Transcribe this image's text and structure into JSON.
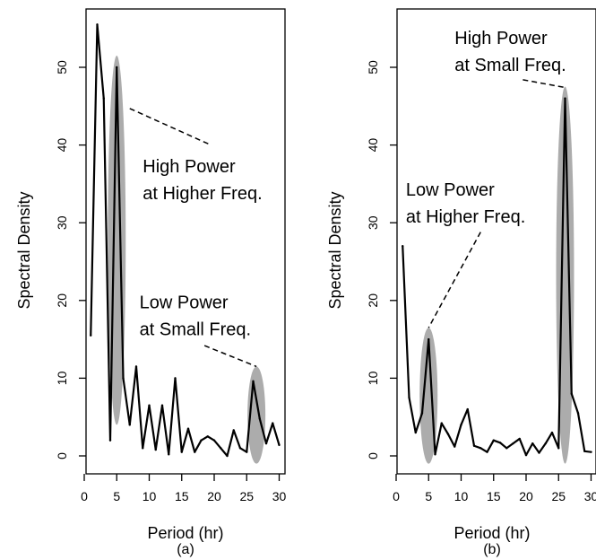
{
  "chart_data": [
    {
      "panel": "(a)",
      "type": "line",
      "xlabel": "Period (hr)",
      "ylabel": "Spectral Density",
      "xlim": [
        0,
        30
      ],
      "ylim": [
        0,
        55
      ],
      "xticks": [
        0,
        5,
        10,
        15,
        20,
        25,
        30
      ],
      "yticks": [
        0,
        10,
        20,
        30,
        40,
        50
      ],
      "x": [
        1,
        2,
        3,
        4,
        5,
        6,
        7,
        8,
        9,
        10,
        11,
        12,
        13,
        14,
        15,
        16,
        17,
        18,
        19,
        20,
        21,
        22,
        23,
        24,
        25,
        26,
        27,
        28,
        29,
        30
      ],
      "y": [
        15.5,
        55.5,
        46,
        2,
        50,
        10,
        4,
        11.5,
        1,
        6.5,
        0.8,
        6.5,
        0.2,
        10,
        0.5,
        3.5,
        0.5,
        2,
        2.5,
        2,
        1,
        0,
        3.3,
        1,
        0.5,
        9.6,
        4.8,
        1.6,
        4.2,
        1.4
      ],
      "highlights": [
        {
          "x": 5,
          "y_min": 4,
          "y_max": 51.5
        },
        {
          "x": 26.5,
          "y_min": -1,
          "y_max": 11.5
        }
      ],
      "annotations": [
        {
          "lines": [
            "High Power",
            "at Higher Freq."
          ],
          "x": 9,
          "y": 36.5,
          "leader_from": [
            7,
            44.7
          ],
          "leader_to": [
            19.5,
            40
          ]
        },
        {
          "lines": [
            "Low Power",
            "at Small Freq."
          ],
          "x": 8.5,
          "y": 19,
          "leader_from": [
            18.5,
            14.2
          ],
          "leader_to": [
            26.5,
            11.5
          ]
        }
      ]
    },
    {
      "panel": "(b)",
      "type": "line",
      "xlabel": "Period (hr)",
      "ylabel": "Spectral Density",
      "xlim": [
        0,
        30
      ],
      "ylim": [
        0,
        55
      ],
      "xticks": [
        0,
        5,
        10,
        15,
        20,
        25,
        30
      ],
      "yticks": [
        0,
        10,
        20,
        30,
        40,
        50
      ],
      "x": [
        1,
        2,
        3,
        4,
        5,
        6,
        7,
        8,
        9,
        10,
        11,
        12,
        13,
        14,
        15,
        16,
        17,
        18,
        19,
        20,
        21,
        22,
        23,
        24,
        25,
        26,
        27,
        28,
        29,
        30
      ],
      "y": [
        27,
        7.5,
        3,
        5.5,
        15,
        0.2,
        4.2,
        2.8,
        1.2,
        4,
        6,
        1.3,
        1,
        0.5,
        2,
        1.7,
        1,
        1.6,
        2.2,
        0.1,
        1.6,
        0.4,
        1.6,
        3,
        1,
        46,
        8,
        5.5,
        0.6,
        0.5
      ],
      "highlights": [
        {
          "x": 5,
          "y_min": -1,
          "y_max": 16.5
        },
        {
          "x": 26,
          "y_min": -1,
          "y_max": 47.5
        }
      ],
      "annotations": [
        {
          "lines": [
            "High Power",
            "at Small Freq."
          ],
          "x": 9,
          "y": 53,
          "leader_from": [
            19.5,
            48.4
          ],
          "leader_to": [
            26,
            47.4
          ]
        },
        {
          "lines": [
            "Low Power",
            "at Higher Freq."
          ],
          "x": 1.5,
          "y": 33.5,
          "leader_from": [
            13,
            28.8
          ],
          "leader_to": [
            5,
            16.5
          ]
        }
      ]
    }
  ]
}
